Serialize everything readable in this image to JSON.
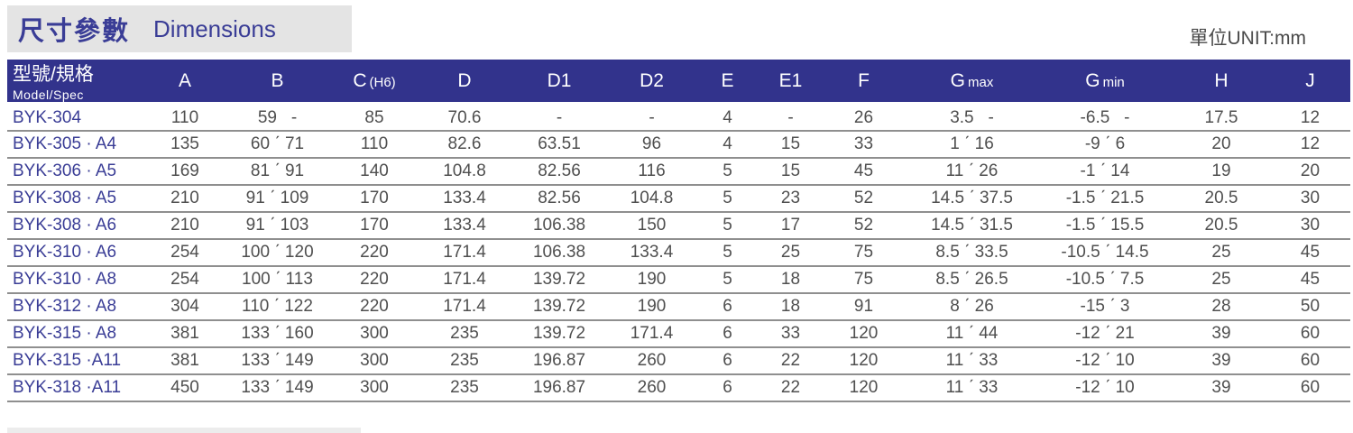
{
  "page": {
    "title_zh": "尺寸參數",
    "title_en": "Dimensions",
    "unit_label": "單位UNIT:mm"
  },
  "table": {
    "columns": [
      {
        "label": "型號/規格",
        "sub": "Model/Spec",
        "sub_pos": "below",
        "align": "left"
      },
      {
        "label": "A"
      },
      {
        "label": "B"
      },
      {
        "label": "C",
        "sub": "(H6)",
        "sub_pos": "inline"
      },
      {
        "label": "D"
      },
      {
        "label": "D1"
      },
      {
        "label": "D2"
      },
      {
        "label": "E"
      },
      {
        "label": "E1"
      },
      {
        "label": "F"
      },
      {
        "label": "G",
        "sub": "max",
        "sub_pos": "inline"
      },
      {
        "label": "G",
        "sub": "min",
        "sub_pos": "inline"
      },
      {
        "label": "H"
      },
      {
        "label": "J"
      }
    ],
    "rows": [
      [
        "BYK-304",
        "110",
        "59   -",
        "85",
        "70.6",
        "-",
        "-",
        "4",
        "-",
        "26",
        "3.5   -",
        "-6.5   -",
        "17.5",
        "12"
      ],
      [
        "BYK-305 · A4",
        "135",
        "60 ˊ 71",
        "110",
        "82.6",
        "63.51",
        "96",
        "4",
        "15",
        "33",
        "1 ˊ 16",
        "-9 ˊ 6",
        "20",
        "12"
      ],
      [
        "BYK-306 · A5",
        "169",
        "81 ˊ 91",
        "140",
        "104.8",
        "82.56",
        "116",
        "5",
        "15",
        "45",
        "11 ˊ 26",
        "-1 ˊ 14",
        "19",
        "20"
      ],
      [
        "BYK-308 · A5",
        "210",
        "91 ˊ 109",
        "170",
        "133.4",
        "82.56",
        "104.8",
        "5",
        "23",
        "52",
        "14.5 ˊ 37.5",
        "-1.5 ˊ 21.5",
        "20.5",
        "30"
      ],
      [
        "BYK-308 · A6",
        "210",
        "91 ˊ 103",
        "170",
        "133.4",
        "106.38",
        "150",
        "5",
        "17",
        "52",
        "14.5 ˊ 31.5",
        "-1.5 ˊ 15.5",
        "20.5",
        "30"
      ],
      [
        "BYK-310 · A6",
        "254",
        "100 ˊ 120",
        "220",
        "171.4",
        "106.38",
        "133.4",
        "5",
        "25",
        "75",
        "8.5 ˊ 33.5",
        "-10.5 ˊ 14.5",
        "25",
        "45"
      ],
      [
        "BYK-310 · A8",
        "254",
        "100 ˊ 113",
        "220",
        "171.4",
        "139.72",
        "190",
        "5",
        "18",
        "75",
        "8.5 ˊ 26.5",
        "-10.5 ˊ 7.5",
        "25",
        "45"
      ],
      [
        "BYK-312 · A8",
        "304",
        "110 ˊ 122",
        "220",
        "171.4",
        "139.72",
        "190",
        "6",
        "18",
        "91",
        "8 ˊ 26",
        "-15 ˊ 3",
        "28",
        "50"
      ],
      [
        "BYK-315 · A8",
        "381",
        "133 ˊ 160",
        "300",
        "235",
        "139.72",
        "171.4",
        "6",
        "33",
        "120",
        "11 ˊ 44",
        "-12 ˊ 21",
        "39",
        "60"
      ],
      [
        "BYK-315 ·A11",
        "381",
        "133 ˊ 149",
        "300",
        "235",
        "196.87",
        "260",
        "6",
        "22",
        "120",
        "11 ˊ 33",
        "-12 ˊ 10",
        "39",
        "60"
      ],
      [
        "BYK-318 ·A11",
        "450",
        "133 ˊ 149",
        "300",
        "235",
        "196.87",
        "260",
        "6",
        "22",
        "120",
        "11 ˊ 33",
        "-12 ˊ 10",
        "39",
        "60"
      ]
    ]
  },
  "colors": {
    "header_bg": "#32338c",
    "accent_text": "#3a3d96",
    "title_box_bg": "#e4e4e4",
    "data_text": "#4f4f4f",
    "row_line": "#8f8f8f"
  }
}
